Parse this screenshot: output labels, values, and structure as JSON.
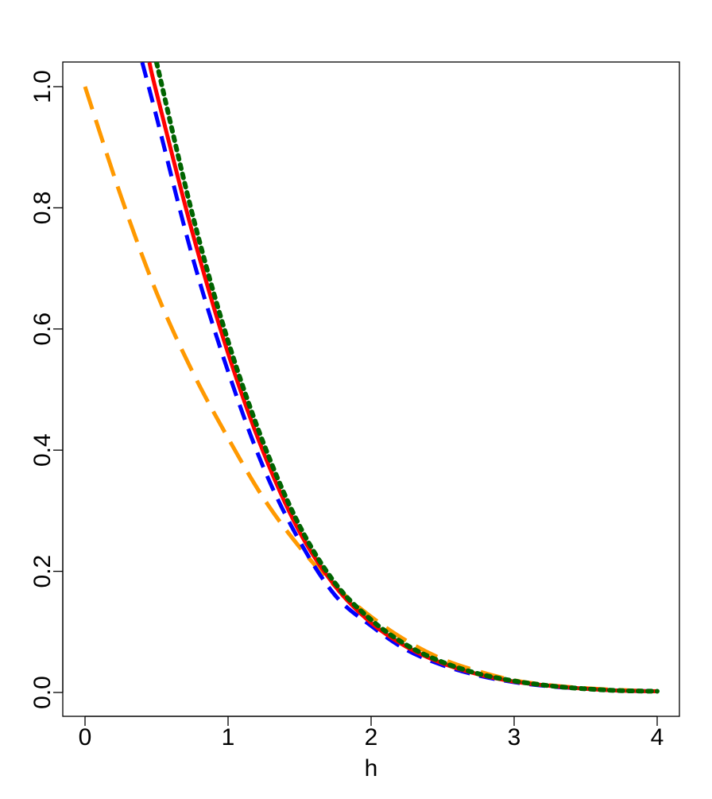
{
  "chart_data": {
    "type": "line",
    "title": "",
    "xlabel": "h",
    "ylabel": "",
    "xlim": [
      0,
      4
    ],
    "ylim": [
      0,
      1
    ],
    "xticks": [
      "0",
      "1",
      "2",
      "3",
      "4"
    ],
    "yticks": [
      "0.0",
      "0.2",
      "0.4",
      "0.6",
      "0.8",
      "1.0"
    ],
    "grid": false,
    "legend": "none",
    "series": [
      {
        "color": "#FF9900",
        "style": "longdash",
        "x": [
          0,
          0.25,
          0.5,
          0.75,
          1.0,
          1.25,
          1.5,
          1.75,
          2.0,
          2.25,
          2.5,
          2.75,
          3.0,
          3.25,
          3.5,
          3.75,
          4.0
        ],
        "y": [
          1.0,
          0.82,
          0.66,
          0.53,
          0.42,
          0.32,
          0.24,
          0.175,
          0.125,
          0.085,
          0.055,
          0.035,
          0.02,
          0.012,
          0.007,
          0.004,
          0.002
        ]
      },
      {
        "color": "#0000FF",
        "style": "dashed",
        "x": [
          0.4,
          0.5,
          0.75,
          1.0,
          1.25,
          1.5,
          1.75,
          2.0,
          2.25,
          2.5,
          2.75,
          3.0,
          3.25,
          3.5,
          3.75,
          4.0
        ],
        "y": [
          1.04,
          0.95,
          0.72,
          0.53,
          0.37,
          0.25,
          0.16,
          0.11,
          0.07,
          0.045,
          0.028,
          0.017,
          0.01,
          0.006,
          0.003,
          0.002
        ]
      },
      {
        "color": "#FF0000",
        "style": "solid",
        "x": [
          0.45,
          0.5,
          0.75,
          1.0,
          1.25,
          1.5,
          1.75,
          2.0,
          2.25,
          2.5,
          2.75,
          3.0,
          3.25,
          3.5,
          3.75,
          4.0
        ],
        "y": [
          1.04,
          0.99,
          0.76,
          0.56,
          0.395,
          0.265,
          0.175,
          0.115,
          0.075,
          0.048,
          0.03,
          0.018,
          0.011,
          0.006,
          0.003,
          0.002
        ]
      },
      {
        "color": "#006400",
        "style": "dotted",
        "x": [
          0.5,
          0.75,
          1.0,
          1.25,
          1.5,
          1.75,
          2.0,
          2.25,
          2.5,
          2.75,
          3.0,
          3.25,
          3.5,
          3.75,
          4.0
        ],
        "y": [
          1.04,
          0.79,
          0.58,
          0.41,
          0.275,
          0.18,
          0.12,
          0.078,
          0.05,
          0.031,
          0.019,
          0.011,
          0.006,
          0.003,
          0.002
        ]
      }
    ]
  }
}
